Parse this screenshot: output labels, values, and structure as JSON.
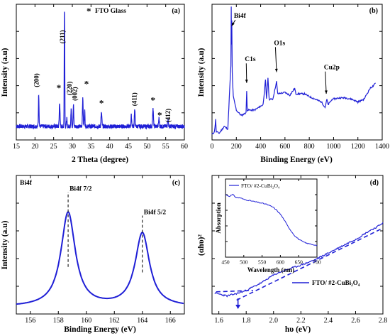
{
  "chart_data": [
    {
      "id": "a",
      "type": "line",
      "panel_label": "(a)",
      "title": "",
      "xlabel": "2 Theta (degree)",
      "ylabel": "Intensity (a.u)",
      "xlim": [
        15,
        60
      ],
      "xticks": [
        15,
        20,
        25,
        30,
        35,
        40,
        45,
        50,
        55,
        60
      ],
      "y_ticks_labeled": false,
      "color": "#1f1fd6",
      "legend": {
        "marker": "*",
        "text": "FTO Glass"
      },
      "series": [
        {
          "background": 0.1,
          "noise": 0.015,
          "peaks": [
            {
              "x": 21.0,
              "h": 0.24,
              "w": 0.12
            },
            {
              "x": 26.6,
              "h": 0.18,
              "w": 0.14
            },
            {
              "x": 27.9,
              "h": 0.88,
              "w": 0.1
            },
            {
              "x": 28.5,
              "h": 0.06,
              "w": 0.12
            },
            {
              "x": 29.7,
              "h": 0.14,
              "w": 0.12
            },
            {
              "x": 30.3,
              "h": 0.16,
              "w": 0.12
            },
            {
              "x": 32.8,
              "h": 0.2,
              "w": 0.14
            },
            {
              "x": 33.3,
              "h": 0.12,
              "w": 0.12
            },
            {
              "x": 37.8,
              "h": 0.1,
              "w": 0.16
            },
            {
              "x": 45.8,
              "h": 0.08,
              "w": 0.14
            },
            {
              "x": 46.7,
              "h": 0.12,
              "w": 0.14
            },
            {
              "x": 51.6,
              "h": 0.13,
              "w": 0.16
            },
            {
              "x": 53.2,
              "h": 0.06,
              "w": 0.14
            },
            {
              "x": 55.6,
              "h": 0.05,
              "w": 0.16
            }
          ]
        }
      ],
      "peak_labels": [
        {
          "x": 21.0,
          "y": 0.44,
          "text": "(200)",
          "vertical": true
        },
        {
          "x": 27.9,
          "y": 0.76,
          "text": "(211)",
          "vertical": true
        },
        {
          "x": 29.8,
          "y": 0.38,
          "text": "(220)",
          "vertical": true
        },
        {
          "x": 31.2,
          "y": 0.34,
          "text": "(002)",
          "vertical": true
        },
        {
          "x": 47.2,
          "y": 0.3,
          "text": "(411)",
          "vertical": true
        },
        {
          "x": 56.2,
          "y": 0.18,
          "text": "(412)",
          "vertical": true
        }
      ],
      "star_marks": [
        {
          "x": 26.4,
          "y": 0.36
        },
        {
          "x": 33.8,
          "y": 0.39
        },
        {
          "x": 37.8,
          "y": 0.25
        },
        {
          "x": 51.6,
          "y": 0.27
        },
        {
          "x": 53.4,
          "y": 0.16
        }
      ]
    },
    {
      "id": "b",
      "type": "line",
      "panel_label": "(b)",
      "title": "",
      "xlabel": "Binding Energy (eV)",
      "ylabel": "Intensity (a.u)",
      "xlim": [
        0,
        1400
      ],
      "xticks": [
        0,
        200,
        400,
        600,
        800,
        1000,
        1200,
        1400
      ],
      "y_ticks_labeled": false,
      "color": "#1f1fd6",
      "series": [
        {
          "points": [
            [
              0,
              0.04
            ],
            [
              20,
              0.06
            ],
            [
              30,
              0.15
            ],
            [
              35,
              0.06
            ],
            [
              60,
              0.05
            ],
            [
              100,
              0.1
            ],
            [
              130,
              0.08
            ],
            [
              155,
              0.55
            ],
            [
              158,
              0.98
            ],
            [
              160,
              0.7
            ],
            [
              163,
              0.88
            ],
            [
              166,
              0.5
            ],
            [
              175,
              0.32
            ],
            [
              200,
              0.22
            ],
            [
              240,
              0.18
            ],
            [
              280,
              0.2
            ],
            [
              285,
              0.36
            ],
            [
              290,
              0.22
            ],
            [
              350,
              0.22
            ],
            [
              420,
              0.26
            ],
            [
              440,
              0.44
            ],
            [
              448,
              0.3
            ],
            [
              460,
              0.46
            ],
            [
              470,
              0.3
            ],
            [
              500,
              0.3
            ],
            [
              531,
              0.43
            ],
            [
              540,
              0.34
            ],
            [
              600,
              0.35
            ],
            [
              640,
              0.33
            ],
            [
              680,
              0.38
            ],
            [
              690,
              0.34
            ],
            [
              760,
              0.34
            ],
            [
              800,
              0.32
            ],
            [
              850,
              0.3
            ],
            [
              900,
              0.28
            ],
            [
              930,
              0.24
            ],
            [
              945,
              0.3
            ],
            [
              955,
              0.26
            ],
            [
              990,
              0.3
            ],
            [
              1050,
              0.31
            ],
            [
              1100,
              0.31
            ],
            [
              1150,
              0.3
            ],
            [
              1200,
              0.28
            ],
            [
              1250,
              0.3
            ],
            [
              1300,
              0.38
            ],
            [
              1330,
              0.4
            ],
            [
              1345,
              0.42
            ]
          ],
          "noise": 0.006
        }
      ],
      "annotations": [
        {
          "text": "Bi4f",
          "tx": 180,
          "ty": 0.9,
          "ax": 162,
          "ay": 0.84
        },
        {
          "text": "C1s",
          "tx": 270,
          "ty": 0.58,
          "ax": 285,
          "ay": 0.42
        },
        {
          "text": "O1s",
          "tx": 510,
          "ty": 0.7,
          "ax": 531,
          "ay": 0.5
        },
        {
          "text": "Cu2p",
          "tx": 920,
          "ty": 0.52,
          "ax": 940,
          "ay": 0.34
        }
      ]
    },
    {
      "id": "c",
      "type": "line",
      "panel_label": "(c)",
      "title": "",
      "corner_label": "Bi4f",
      "xlabel": "Binding Energy (eV)",
      "ylabel": "Intensity (a.u)",
      "xlim": [
        155,
        167
      ],
      "xticks": [
        156,
        158,
        160,
        162,
        164,
        166
      ],
      "y_ticks_labeled": false,
      "color": "#1f1fd6",
      "series": [
        {
          "baseline": 0.05,
          "peaks": [
            {
              "x": 158.7,
              "h": 0.68,
              "w": 0.62
            },
            {
              "x": 164.0,
              "h": 0.53,
              "w": 0.62
            }
          ]
        }
      ],
      "peak_labels": [
        {
          "x": 158.7,
          "text": "Bi4f 7/2"
        },
        {
          "x": 164.0,
          "text": "Bi4f 5/2"
        }
      ],
      "dashed_lines": [
        {
          "x": 158.7,
          "y0": 0.34,
          "y1": 0.88
        },
        {
          "x": 164.0,
          "y0": 0.3,
          "y1": 0.71
        }
      ]
    },
    {
      "id": "d",
      "type": "line",
      "panel_label": "(d)",
      "title": "",
      "xlabel": "hυ (eV)",
      "ylabel": "(αhυ)²",
      "xlim": [
        1.55,
        2.8
      ],
      "xticks": [
        1.6,
        1.8,
        2.0,
        2.2,
        2.4,
        2.6,
        2.8
      ],
      "y_ticks_labeled": false,
      "color": "#1f1fd6",
      "legend": {
        "text": "FTO/ #2-CuBi₂O₄"
      },
      "series": [
        {
          "points": [
            [
              1.57,
              0.15
            ],
            [
              1.62,
              0.14
            ],
            [
              1.66,
              0.13
            ],
            [
              1.7,
              0.14
            ],
            [
              1.74,
              0.15
            ],
            [
              1.8,
              0.17
            ],
            [
              1.86,
              0.2
            ],
            [
              1.92,
              0.23
            ],
            [
              1.98,
              0.27
            ],
            [
              2.04,
              0.3
            ],
            [
              2.1,
              0.32
            ],
            [
              2.16,
              0.34
            ],
            [
              2.22,
              0.36
            ],
            [
              2.3,
              0.39
            ],
            [
              2.38,
              0.43
            ],
            [
              2.46,
              0.47
            ],
            [
              2.54,
              0.51
            ],
            [
              2.62,
              0.55
            ],
            [
              2.7,
              0.6
            ],
            [
              2.76,
              0.63
            ],
            [
              2.8,
              0.66
            ]
          ],
          "noise": 0.006
        }
      ],
      "fit_line": {
        "points": [
          [
            1.73,
            0.1
          ],
          [
            2.8,
            0.62
          ]
        ]
      },
      "baseline_dash": {
        "points": [
          [
            1.58,
            0.16
          ],
          [
            1.85,
            0.17
          ]
        ]
      },
      "bandgap_arrow": {
        "x": 1.74
      },
      "inset": {
        "type": "line",
        "xlabel": "Wavelength (nm)",
        "ylabel": "Absorption",
        "xlim": [
          450,
          700
        ],
        "xticks": [
          450,
          500,
          550,
          600,
          650,
          700
        ],
        "legend_text": "FTO/ #2-CuBi₂O₄",
        "points": [
          [
            450,
            0.8
          ],
          [
            460,
            0.78
          ],
          [
            470,
            0.8
          ],
          [
            480,
            0.76
          ],
          [
            490,
            0.76
          ],
          [
            500,
            0.74
          ],
          [
            510,
            0.73
          ],
          [
            520,
            0.72
          ],
          [
            530,
            0.71
          ],
          [
            540,
            0.7
          ],
          [
            550,
            0.69
          ],
          [
            560,
            0.68
          ],
          [
            570,
            0.66
          ],
          [
            580,
            0.64
          ],
          [
            590,
            0.6
          ],
          [
            600,
            0.55
          ],
          [
            610,
            0.48
          ],
          [
            620,
            0.4
          ],
          [
            630,
            0.33
          ],
          [
            640,
            0.27
          ],
          [
            650,
            0.23
          ],
          [
            660,
            0.2
          ],
          [
            670,
            0.18
          ],
          [
            680,
            0.17
          ],
          [
            690,
            0.16
          ],
          [
            700,
            0.15
          ]
        ],
        "noise": 0.006
      }
    }
  ]
}
